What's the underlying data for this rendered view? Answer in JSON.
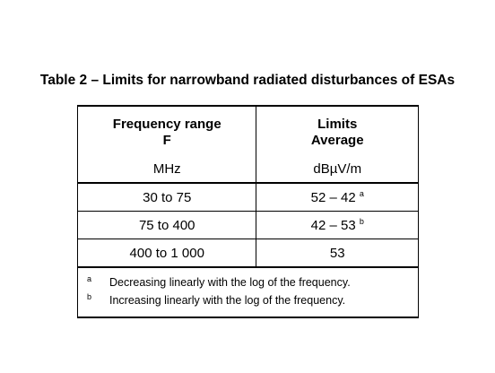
{
  "caption": "Table 2 – Limits for narrowband radiated disturbances of ESAs",
  "header": {
    "col1_line1": "Frequency range",
    "col1_line2": "F",
    "col2_line1": "Limits",
    "col2_line2": "Average",
    "col1_unit": "MHz",
    "col2_unit": "dBµV/m"
  },
  "rows": [
    {
      "frequency": "30 to 75",
      "limit": "52 – 42",
      "note_mark": "a"
    },
    {
      "frequency": "75 to 400",
      "limit": "42 – 53",
      "note_mark": "b"
    },
    {
      "frequency": "400 to 1 000",
      "limit": "53",
      "note_mark": ""
    }
  ],
  "notes": [
    {
      "mark": "a",
      "text": "Decreasing linearly with the log of the frequency."
    },
    {
      "mark": "b",
      "text": "Increasing linearly with the log of the frequency."
    }
  ]
}
